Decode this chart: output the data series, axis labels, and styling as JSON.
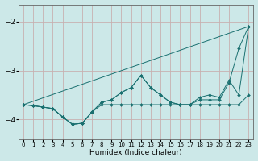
{
  "xlabel": "Humidex (Indice chaleur)",
  "background_color": "#cce8e8",
  "grid_color_h": "#c8b0b0",
  "grid_color_v": "#c8b0b0",
  "line_color": "#1a7070",
  "xlim": [
    -0.5,
    23.5
  ],
  "ylim": [
    -4.4,
    -1.65
  ],
  "yticks": [
    -4,
    -3,
    -2
  ],
  "xticks": [
    0,
    1,
    2,
    3,
    4,
    5,
    6,
    7,
    8,
    9,
    10,
    11,
    12,
    13,
    14,
    15,
    16,
    17,
    18,
    19,
    20,
    21,
    22,
    23
  ],
  "series": [
    {
      "comment": "straight line from 0,-3.7 to 23,-2.1",
      "x": [
        0,
        23
      ],
      "y": [
        -3.7,
        -2.1
      ],
      "has_markers": false
    },
    {
      "x": [
        0,
        1,
        2,
        3,
        4,
        5,
        6,
        7,
        8,
        9,
        10,
        11,
        12,
        13,
        14,
        15,
        16,
        17,
        18,
        19,
        20,
        21,
        22,
        23
      ],
      "y": [
        -3.7,
        -3.72,
        -3.75,
        -3.78,
        -3.95,
        -4.1,
        -4.08,
        -3.85,
        -3.7,
        -3.7,
        -3.7,
        -3.7,
        -3.7,
        -3.7,
        -3.7,
        -3.7,
        -3.7,
        -3.7,
        -3.7,
        -3.7,
        -3.7,
        -3.7,
        -3.7,
        -3.5
      ],
      "has_markers": true
    },
    {
      "x": [
        0,
        1,
        2,
        3,
        4,
        5,
        6,
        7,
        8,
        9,
        10,
        11,
        12,
        13,
        14,
        15,
        16,
        17,
        18,
        19,
        20,
        21,
        22,
        23
      ],
      "y": [
        -3.7,
        -3.72,
        -3.75,
        -3.78,
        -3.95,
        -4.1,
        -4.08,
        -3.85,
        -3.65,
        -3.6,
        -3.45,
        -3.35,
        -3.1,
        -3.35,
        -3.5,
        -3.65,
        -3.7,
        -3.7,
        -3.55,
        -3.5,
        -3.55,
        -3.2,
        -3.5,
        -2.1
      ],
      "has_markers": true
    },
    {
      "x": [
        0,
        1,
        2,
        3,
        4,
        5,
        6,
        7,
        8,
        9,
        10,
        11,
        12,
        13,
        14,
        15,
        16,
        17,
        18,
        19,
        20,
        21,
        22,
        23
      ],
      "y": [
        -3.7,
        -3.72,
        -3.75,
        -3.78,
        -3.95,
        -4.1,
        -4.08,
        -3.85,
        -3.65,
        -3.6,
        -3.45,
        -3.35,
        -3.1,
        -3.35,
        -3.5,
        -3.65,
        -3.7,
        -3.7,
        -3.6,
        -3.6,
        -3.6,
        -3.25,
        -2.55,
        -2.1
      ],
      "has_markers": true
    }
  ]
}
